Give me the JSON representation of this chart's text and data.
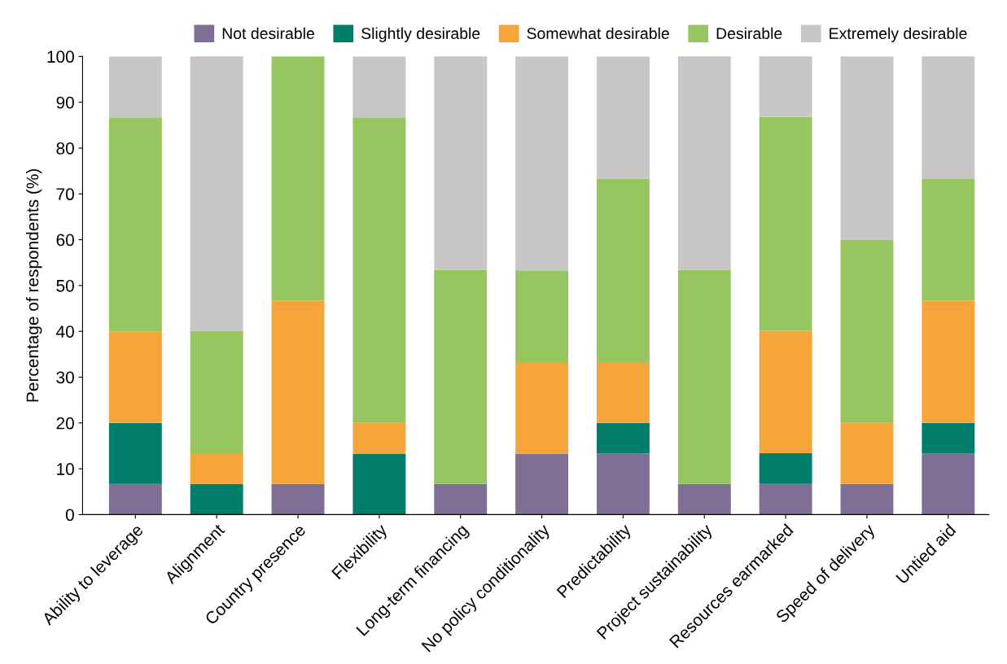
{
  "chart_data": {
    "type": "bar",
    "stacked": true,
    "ylabel": "Percentage of respondents (%)",
    "categories": [
      "Ability to leverage",
      "Alignment",
      "Country presence",
      "Flexibility",
      "Long-term financing",
      "No policy conditionality",
      "Predictability",
      "Project sustainability",
      "Resources earmarked",
      "Speed of delivery",
      "Untied aid"
    ],
    "series": [
      {
        "name": "Not desirable",
        "color": "#7f6e96",
        "values": [
          6.7,
          0,
          6.7,
          0,
          6.7,
          13.3,
          13.3,
          6.7,
          6.7,
          6.7,
          13.3
        ]
      },
      {
        "name": "Slightly desirable",
        "color": "#007e6a",
        "values": [
          13.3,
          6.7,
          0,
          13.3,
          0,
          0,
          6.7,
          0,
          6.7,
          0,
          6.7
        ]
      },
      {
        "name": "Somewhat desirable",
        "color": "#f6a53b",
        "values": [
          20,
          6.7,
          40,
          6.7,
          0,
          20,
          13.3,
          0,
          26.7,
          13.3,
          26.7
        ]
      },
      {
        "name": "Desirable",
        "color": "#97c560",
        "values": [
          46.7,
          26.7,
          53.3,
          66.7,
          46.7,
          20,
          40,
          46.7,
          46.7,
          40,
          26.7
        ]
      },
      {
        "name": "Extremely desirable",
        "color": "#c8c6c7",
        "values": [
          13.3,
          60,
          0,
          13.3,
          46.7,
          46.7,
          26.7,
          46.7,
          13.3,
          40,
          26.7
        ]
      }
    ],
    "ylim": [
      0,
      100
    ],
    "yticks": [
      0,
      10,
      20,
      30,
      40,
      50,
      60,
      70,
      80,
      90,
      100
    ],
    "grid": false,
    "legend": "top"
  }
}
